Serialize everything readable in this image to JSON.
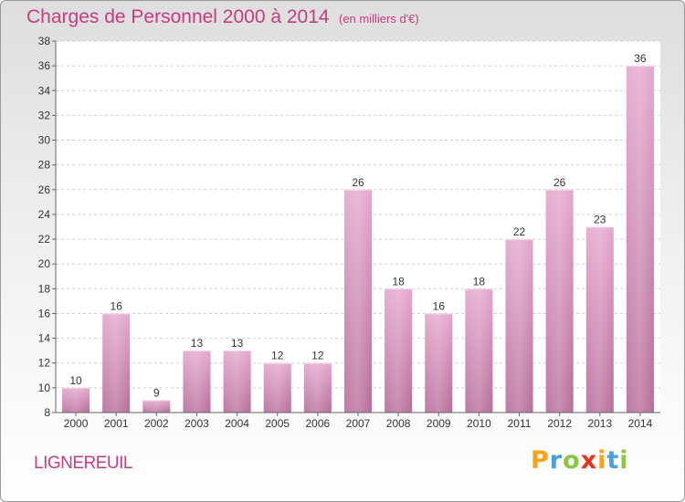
{
  "title": "Charges de Personnel 2000 à 2014",
  "subtitle": "(en milliers d'€)",
  "commune": "LIGNEREUIL",
  "logo": {
    "letters": [
      "P",
      "r",
      "o",
      "x",
      "i",
      "t",
      "i"
    ],
    "colors": [
      "#f7a21b",
      "#4ba0d8",
      "#8cc63f",
      "#e8341c",
      "#f7a21b",
      "#4ba0d8",
      "#8cc63f"
    ]
  },
  "colors": {
    "bar": "#d38bb8",
    "text": "#c43d7e"
  },
  "chart_data": {
    "type": "bar",
    "title": "Charges de Personnel 2000 à 2014",
    "subtitle": "(en milliers d'€)",
    "categories": [
      "2000",
      "2001",
      "2002",
      "2003",
      "2004",
      "2005",
      "2006",
      "2007",
      "2008",
      "2009",
      "2010",
      "2011",
      "2012",
      "2013",
      "2014"
    ],
    "values": [
      10,
      16,
      9,
      13,
      13,
      12,
      12,
      26,
      18,
      16,
      18,
      22,
      26,
      23,
      36
    ],
    "ylim": [
      8,
      38
    ],
    "yticks": [
      8,
      10,
      12,
      14,
      16,
      18,
      20,
      22,
      24,
      26,
      28,
      30,
      32,
      34,
      36,
      38
    ],
    "grid": true,
    "xlabel": "",
    "ylabel": ""
  }
}
